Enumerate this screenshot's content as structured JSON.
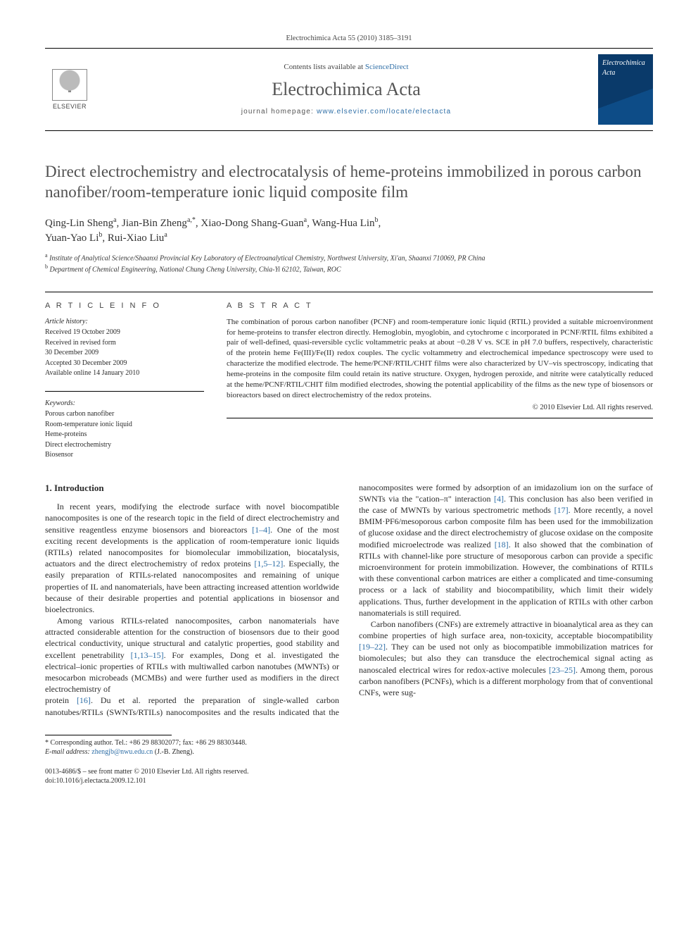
{
  "topline": "Electrochimica Acta 55 (2010) 3185–3191",
  "masthead": {
    "publisher_name": "ELSEVIER",
    "available_prefix": "Contents lists available at ",
    "available_link": "ScienceDirect",
    "journal_name": "Electrochimica Acta",
    "homepage_prefix": "journal homepage: ",
    "homepage_url": "www.elsevier.com/locate/electacta",
    "cover_title": "Electrochimica Acta"
  },
  "title": "Direct electrochemistry and electrocatalysis of heme-proteins immobilized in porous carbon nanofiber/room-temperature ionic liquid composite film",
  "authors": [
    {
      "name": "Qing-Lin Sheng",
      "aff": "a"
    },
    {
      "name": "Jian-Bin Zheng",
      "aff": "a,*"
    },
    {
      "name": "Xiao-Dong Shang-Guan",
      "aff": "a"
    },
    {
      "name": "Wang-Hua Lin",
      "aff": "b"
    },
    {
      "name": "Yuan-Yao Li",
      "aff": "b"
    },
    {
      "name": "Rui-Xiao Liu",
      "aff": "a"
    }
  ],
  "affiliations": [
    {
      "sup": "a",
      "text": "Institute of Analytical Science/Shaanxi Provincial Key Laboratory of Electroanalytical Chemistry, Northwest University, Xi'an, Shaanxi 710069, PR China"
    },
    {
      "sup": "b",
      "text": "Department of Chemical Engineering, National Chung Cheng University, Chia-Yi 62102, Taiwan, ROC"
    }
  ],
  "article_info": {
    "heading": "a r t i c l e   i n f o",
    "history_label": "Article history:",
    "history": [
      "Received 19 October 2009",
      "Received in revised form",
      "30 December 2009",
      "Accepted 30 December 2009",
      "Available online 14 January 2010"
    ],
    "keywords_label": "Keywords:",
    "keywords": [
      "Porous carbon nanofiber",
      "Room-temperature ionic liquid",
      "Heme-proteins",
      "Direct electrochemistry",
      "Biosensor"
    ]
  },
  "abstract": {
    "heading": "a b s t r a c t",
    "text": "The combination of porous carbon nanofiber (PCNF) and room-temperature ionic liquid (RTIL) provided a suitable microenvironment for heme-proteins to transfer electron directly. Hemoglobin, myoglobin, and cytochrome c incorporated in PCNF/RTIL films exhibited a pair of well-defined, quasi-reversible cyclic voltammetric peaks at about −0.28 V vs. SCE in pH 7.0 buffers, respectively, characteristic of the protein heme Fe(III)/Fe(II) redox couples. The cyclic voltammetry and electrochemical impedance spectroscopy were used to characterize the modified electrode. The heme/PCNF/RTIL/CHIT films were also characterized by UV–vis spectroscopy, indicating that heme-proteins in the composite film could retain its native structure. Oxygen, hydrogen peroxide, and nitrite were catalytically reduced at the heme/PCNF/RTIL/CHIT film modified electrodes, showing the potential applicability of the films as the new type of biosensors or bioreactors based on direct electrochemistry of the redox proteins.",
    "copyright": "© 2010 Elsevier Ltd. All rights reserved."
  },
  "sections": {
    "intro_heading": "1.  Introduction",
    "p1": "In recent years, modifying the electrode surface with novel biocompatible nanocomposites is one of the research topic in the field of direct electrochemistry and sensitive reagentless enzyme biosensors and bioreactors [1–4]. One of the most exciting recent developments is the application of room-temperature ionic liquids (RTILs) related nanocomposites for biomolecular immobilization, biocatalysis, actuators and the direct electrochemistry of redox proteins [1,5–12]. Especially, the easily preparation of RTILs-related nanocomposites and remaining of unique properties of IL and nanomaterials, have been attracting increased attention worldwide because of their desirable properties and potential applications in biosensor and bioelectronics.",
    "p2": "Among various RTILs-related nanocomposites, carbon nanomaterials have attracted considerable attention for the construction of biosensors due to their good electrical conductivity, unique structural and catalytic properties, good stability and excellent penetrability [1,13–15]. For examples, Dong et al. investigated the electrical–ionic properties of RTILs with multiwalled carbon nanotubes (MWNTs) or mesocarbon microbeads (MCMBs) and were further used as modifiers in the direct electrochemistry of",
    "p3": "protein [16]. Du et al. reported the preparation of single-walled carbon nanotubes/RTILs (SWNTs/RTILs) nanocomposites and the results indicated that the nanocomposites were formed by adsorption of an imidazolium ion on the surface of SWNTs via the \"cation–π\" interaction [4]. This conclusion has also been verified in the case of MWNTs by various spectrometric methods [17]. More recently, a novel BMIM·PF6/mesoporous carbon composite film has been used for the immobilization of glucose oxidase and the direct electrochemistry of glucose oxidase on the composite modified microelectrode was realized [18]. It also showed that the combination of RTILs with channel-like pore structure of mesoporous carbon can provide a specific microenvironment for protein immobilization. However, the combinations of RTILs with these conventional carbon matrices are either a complicated and time-consuming process or a lack of stability and biocompatibility, which limit their widely applications. Thus, further development in the application of RTILs with other carbon nanomaterials is still required.",
    "p4": "Carbon nanofibers (CNFs) are extremely attractive in bioanalytical area as they can combine properties of high surface area, non-toxicity, acceptable biocompatibility [19–22]. They can be used not only as biocompatible immobilization matrices for biomolecules; but also they can transduce the electrochemical signal acting as nanoscaled electrical wires for redox-active molecules [23–25]. Among them, porous carbon nanofibers (PCNFs), which is a different morphology from that of conventional CNFs, were sug-"
  },
  "footnote": {
    "star": "*",
    "corr": " Corresponding author. Tel.: +86 29 88302077; fax: +86 29 88303448.",
    "email_lbl": "E-mail address: ",
    "email": "zhengjb@nwu.edu.cn",
    "email_tail": " (J.-B. Zheng)."
  },
  "bottom": {
    "issn": "0013-4686/$ – see front matter © 2010 Elsevier Ltd. All rights reserved.",
    "doi": "doi:10.1016/j.electacta.2009.12.101"
  },
  "colors": {
    "link": "#2f6fa7",
    "text": "#2b2b2b",
    "muted": "#505050"
  },
  "typography": {
    "body_pt": 12,
    "title_pt": 23,
    "journal_pt": 26,
    "abstract_pt": 11,
    "footnote_pt": 10
  }
}
